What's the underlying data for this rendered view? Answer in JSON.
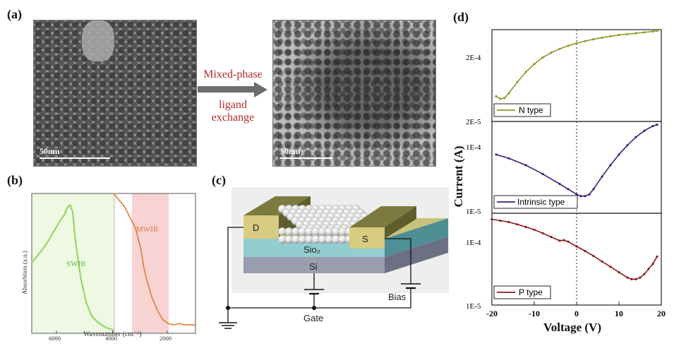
{
  "panel_a": {
    "label": "(a)",
    "scale_left": "50nm",
    "scale_right": "50nm",
    "arrow_top": "Mixed-phase",
    "arrow_bottom_1": "ligand",
    "arrow_bottom_2": "exchange"
  },
  "panel_b": {
    "label": "(b)",
    "ylabel": "Absorbtion (a.u.)",
    "xlabel": "Wavenumber (cm⁻¹)",
    "xticks": [
      "6000",
      "4000",
      "2000"
    ],
    "swir_label": "SWIR",
    "mwir_label": "MWIR"
  },
  "panel_c": {
    "label": "(c)",
    "drain": "D",
    "source": "S",
    "sio2": "Sio₂",
    "si": "Si",
    "gate": "Gate",
    "bias": "Bias"
  },
  "panel_d": {
    "label": "(d)",
    "ylabel": "Current (A)",
    "xlabel": "Voltage (V)",
    "xticks": [
      "-20",
      "-10",
      "0",
      "10",
      "20"
    ],
    "top_ytick_1": "2E-4",
    "top_ytick_2": "2E-5",
    "mid_ytick_1": "1E-4",
    "mid_ytick_2": "1E-5",
    "bot_ytick_1": "1E-4",
    "bot_ytick_2": "1E-5"
  },
  "colors": {
    "n_type": "#8c9a2c",
    "intrinsic": "#3f1f78",
    "p_type": "#8b1b1b",
    "swir": "#8ed65a",
    "mwir": "#e07a38"
  },
  "chart_data": [
    {
      "type": "line",
      "title": "",
      "xlabel": "Wavenumber (cm⁻¹)",
      "ylabel": "Absorbtion (a.u.)",
      "xlim": [
        7000,
        1000
      ],
      "xticks": [
        6000,
        4000,
        2000
      ],
      "series": [
        {
          "name": "SWIR",
          "x": [
            7000,
            6800,
            6600,
            6400,
            6200,
            6000,
            5800,
            5700,
            5600,
            5500,
            5400,
            5200,
            5000,
            4800,
            4600,
            4400,
            4200,
            4000
          ],
          "y": [
            0.5,
            0.55,
            0.6,
            0.66,
            0.73,
            0.8,
            0.86,
            0.91,
            0.93,
            0.88,
            0.66,
            0.38,
            0.2,
            0.1,
            0.06,
            0.03,
            0.01,
            0.0
          ]
        },
        {
          "name": "MWIR",
          "x": [
            4000,
            3800,
            3600,
            3400,
            3200,
            3100,
            3000,
            2900,
            2800,
            2600,
            2400,
            2200,
            2000,
            1800,
            1600,
            1400,
            1200,
            1000
          ],
          "y": [
            1.0,
            0.95,
            0.9,
            0.82,
            0.74,
            0.66,
            0.58,
            0.45,
            0.36,
            0.22,
            0.12,
            0.05,
            0.02,
            0.01,
            0.02,
            0.01,
            0.01,
            0.01
          ]
        }
      ]
    },
    {
      "type": "line",
      "xlabel": "Voltage (V)",
      "ylabel": "Current (A)",
      "xlim": [
        -20,
        20
      ],
      "ylim": [
        2e-05,
        0.0003
      ],
      "yscale": "log",
      "series": [
        {
          "name": "N type",
          "x": [
            -19,
            -18,
            -17,
            -16,
            -14,
            -12,
            -10,
            -8,
            -6,
            -4,
            -2,
            0,
            2,
            4,
            6,
            8,
            10,
            12,
            14,
            16,
            18,
            19
          ],
          "y": [
            4.2e-05,
            3.9e-05,
            4e-05,
            4.6e-05,
            6.4e-05,
            8.6e-05,
            0.000109,
            0.000132,
            0.000152,
            0.00017,
            0.000186,
            0.000201,
            0.000214,
            0.000226,
            0.000237,
            0.000247,
            0.000256,
            0.000263,
            0.00027,
            0.000277,
            0.000285,
            0.00029
          ]
        }
      ]
    },
    {
      "type": "line",
      "xlabel": "Voltage (V)",
      "ylabel": "Current (A)",
      "xlim": [
        -20,
        20
      ],
      "ylim": [
        1e-05,
        0.0002
      ],
      "yscale": "log",
      "series": [
        {
          "name": "Intrinsic type",
          "x": [
            -19,
            -16,
            -12,
            -8,
            -4,
            -2,
            0,
            1,
            2,
            3,
            4,
            6,
            8,
            10,
            12,
            14,
            16,
            18,
            19
          ],
          "y": [
            6.8e-05,
            6e-05,
            4.8e-05,
            3.6e-05,
            2.6e-05,
            2.2e-05,
            1.85e-05,
            1.75e-05,
            1.75e-05,
            1.85e-05,
            2.2e-05,
            3.3e-05,
            4.8e-05,
            6.8e-05,
            9.2e-05,
            0.00012,
            0.000148,
            0.000172,
            0.00018
          ]
        }
      ]
    },
    {
      "type": "line",
      "xlabel": "Voltage (V)",
      "ylabel": "Current (A)",
      "xlim": [
        -20,
        20
      ],
      "ylim": [
        1e-05,
        0.00026
      ],
      "yscale": "log",
      "series": [
        {
          "name": "P type",
          "x": [
            -20,
            -18,
            -16,
            -14,
            -12,
            -10,
            -8,
            -6,
            -4,
            -3,
            -2,
            0,
            2,
            4,
            6,
            8,
            10,
            12,
            13,
            14,
            15,
            16,
            17,
            18,
            19
          ],
          "y": [
            0.00021,
            0.0002,
            0.00019,
            0.000175,
            0.00016,
            0.000145,
            0.000128,
            0.000112,
            9.8e-05,
            0.0001,
            9.5e-05,
            8e-05,
            6.8e-05,
            5.7e-05,
            4.7e-05,
            3.9e-05,
            3.2e-05,
            2.65e-05,
            2.5e-05,
            2.5e-05,
            2.65e-05,
            3e-05,
            3.6e-05,
            4.3e-05,
            5.6e-05
          ]
        }
      ]
    }
  ]
}
